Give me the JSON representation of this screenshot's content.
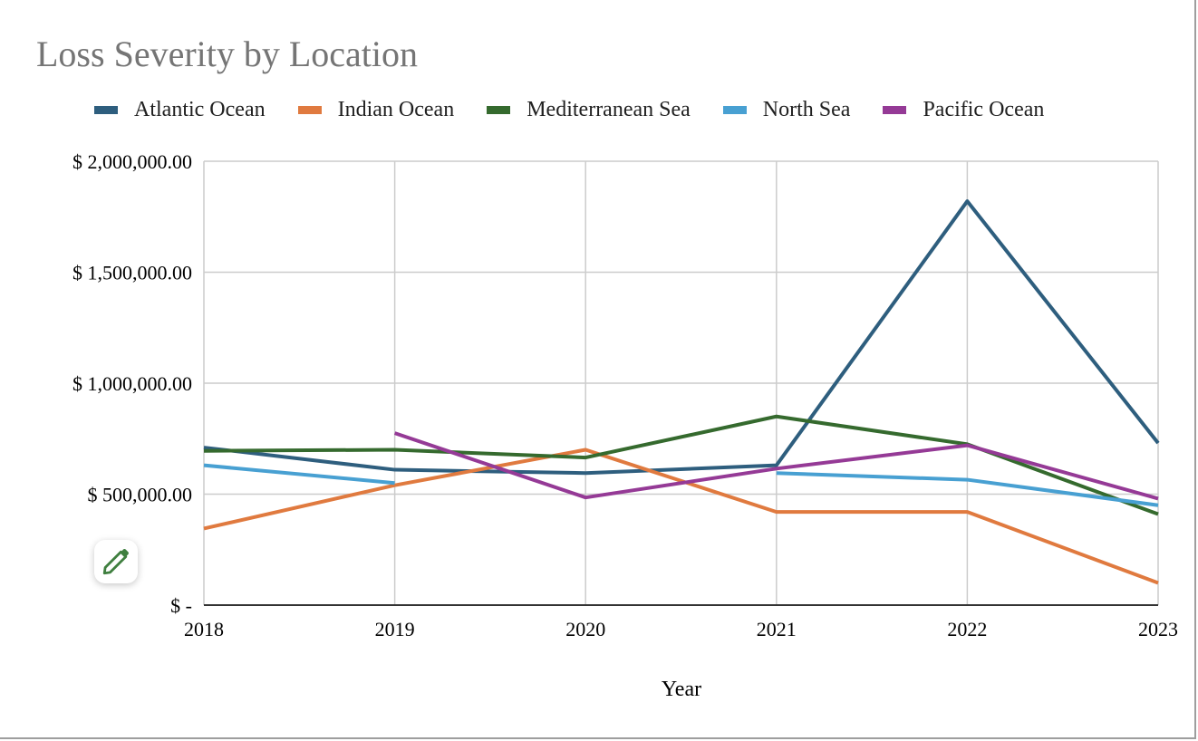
{
  "chart_data": {
    "type": "line",
    "title": "Loss Severity by Location",
    "xlabel": "Year",
    "ylabel": "",
    "categories": [
      "2018",
      "2019",
      "2020",
      "2021",
      "2022",
      "2023"
    ],
    "ylim": [
      0,
      2000000
    ],
    "yticks": [
      {
        "value": 0,
        "label": "$ -"
      },
      {
        "value": 500000,
        "label": "$ 500,000.00"
      },
      {
        "value": 1000000,
        "label": "$ 1,000,000.00"
      },
      {
        "value": 1500000,
        "label": "$ 1,500,000.00"
      },
      {
        "value": 2000000,
        "label": "$ 2,000,000.00"
      }
    ],
    "grid": true,
    "legend_position": "top",
    "series": [
      {
        "name": "Atlantic Ocean",
        "color": "#2e5e7e",
        "values": [
          710000,
          610000,
          595000,
          630000,
          1820000,
          730000
        ]
      },
      {
        "name": "Indian Ocean",
        "color": "#e07a3f",
        "values": [
          345000,
          540000,
          700000,
          420000,
          420000,
          100000
        ]
      },
      {
        "name": "Mediterranean Sea",
        "color": "#356a2e",
        "values": [
          695000,
          700000,
          665000,
          850000,
          725000,
          410000
        ]
      },
      {
        "name": "North Sea",
        "color": "#48a0d2",
        "values": [
          630000,
          550000,
          null,
          595000,
          565000,
          450000
        ]
      },
      {
        "name": "Pacific Ocean",
        "color": "#953a96",
        "values": [
          null,
          775000,
          485000,
          615000,
          720000,
          480000
        ]
      }
    ]
  },
  "edit_button": {
    "icon": "pencil-icon",
    "color": "#3f7f3f"
  }
}
